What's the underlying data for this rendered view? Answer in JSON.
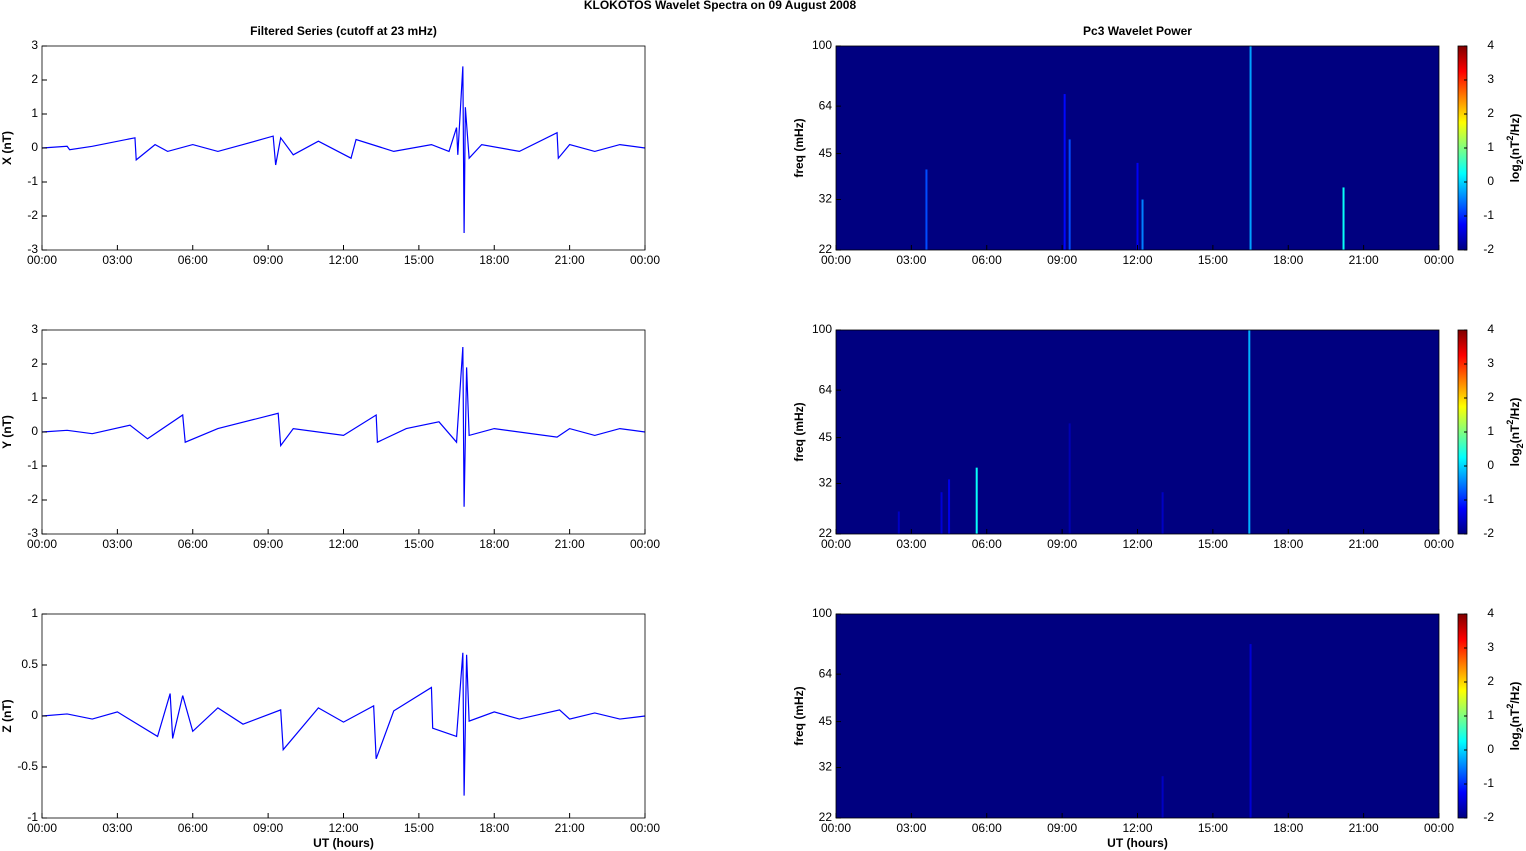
{
  "title": "KLOKOTOS Wavelet Spectra on 09 August    2008",
  "chart_data": [
    {
      "type": "line",
      "title": "Filtered Series (cutoff at 23 mHz)",
      "ylabel": "X (nT)",
      "color": "#0000ff",
      "x": [
        0,
        1,
        1.1,
        2,
        3.7,
        3.75,
        4.5,
        5,
        6,
        7,
        8,
        9.2,
        9.3,
        9.5,
        10,
        11,
        12.3,
        12.5,
        14,
        15.5,
        16.2,
        16.5,
        16.55,
        16.75,
        16.8,
        16.85,
        17,
        17.5,
        19,
        20.5,
        20.55,
        21,
        22,
        23,
        24
      ],
      "values": [
        0,
        0.05,
        -0.05,
        0.05,
        0.3,
        -0.35,
        0.1,
        -0.1,
        0.1,
        -0.1,
        0.1,
        0.35,
        -0.5,
        0.3,
        -0.2,
        0.2,
        -0.3,
        0.25,
        -0.1,
        0.1,
        -0.1,
        0.6,
        -0.2,
        2.4,
        -2.5,
        1.2,
        -0.3,
        0.1,
        -0.1,
        0.45,
        -0.3,
        0.1,
        -0.1,
        0.1,
        0
      ],
      "xlim": [
        0,
        24
      ],
      "xticks": [
        {
          "value": 0,
          "label": "00:00"
        },
        {
          "value": 3,
          "label": "03:00"
        },
        {
          "value": 6,
          "label": "06:00"
        },
        {
          "value": 9,
          "label": "09:00"
        },
        {
          "value": 12,
          "label": "12:00"
        },
        {
          "value": 15,
          "label": "15:00"
        },
        {
          "value": 18,
          "label": "18:00"
        },
        {
          "value": 21,
          "label": "21:00"
        },
        {
          "value": 24,
          "label": "00:00"
        }
      ],
      "ylim": [
        -3,
        3
      ],
      "yticks": [
        -3,
        -2,
        -1,
        0,
        1,
        2,
        3
      ]
    },
    {
      "type": "line",
      "ylabel": "Y (nT)",
      "color": "#0000ff",
      "x": [
        0,
        1,
        2,
        3.5,
        4.2,
        5.6,
        5.7,
        7,
        9.4,
        9.5,
        10,
        12,
        13.3,
        13.35,
        14.5,
        15.8,
        16.5,
        16.75,
        16.8,
        16.9,
        17,
        18,
        20.5,
        21,
        22,
        23,
        24
      ],
      "values": [
        0,
        0.05,
        -0.05,
        0.2,
        -0.2,
        0.5,
        -0.3,
        0.1,
        0.55,
        -0.4,
        0.1,
        -0.1,
        0.5,
        -0.3,
        0.1,
        0.3,
        -0.3,
        2.5,
        -2.2,
        1.9,
        -0.1,
        0.1,
        -0.15,
        0.1,
        -0.1,
        0.1,
        0
      ],
      "xlim": [
        0,
        24
      ],
      "xticks": [
        {
          "value": 0,
          "label": "00:00"
        },
        {
          "value": 3,
          "label": "03:00"
        },
        {
          "value": 6,
          "label": "06:00"
        },
        {
          "value": 9,
          "label": "09:00"
        },
        {
          "value": 12,
          "label": "12:00"
        },
        {
          "value": 15,
          "label": "15:00"
        },
        {
          "value": 18,
          "label": "18:00"
        },
        {
          "value": 21,
          "label": "21:00"
        },
        {
          "value": 24,
          "label": "00:00"
        }
      ],
      "ylim": [
        -3,
        3
      ],
      "yticks": [
        -3,
        -2,
        -1,
        0,
        1,
        2,
        3
      ]
    },
    {
      "type": "line",
      "ylabel": "Z (nT)",
      "xlabel": "UT (hours)",
      "color": "#0000ff",
      "x": [
        0,
        1,
        2,
        3,
        4.6,
        5.1,
        5.2,
        5.6,
        6,
        7,
        8,
        9.5,
        9.6,
        11,
        12,
        13.2,
        13.3,
        14,
        15.5,
        15.55,
        16.5,
        16.75,
        16.8,
        16.9,
        17,
        18,
        19,
        20.6,
        21,
        22,
        23,
        24
      ],
      "values": [
        0,
        0.02,
        -0.03,
        0.04,
        -0.2,
        0.22,
        -0.22,
        0.2,
        -0.15,
        0.08,
        -0.08,
        0.06,
        -0.33,
        0.08,
        -0.06,
        0.1,
        -0.42,
        0.05,
        0.28,
        -0.12,
        -0.2,
        0.62,
        -0.78,
        0.6,
        -0.05,
        0.04,
        -0.03,
        0.06,
        -0.03,
        0.03,
        -0.03,
        0
      ],
      "xlim": [
        0,
        24
      ],
      "xticks": [
        {
          "value": 0,
          "label": "00:00"
        },
        {
          "value": 3,
          "label": "03:00"
        },
        {
          "value": 6,
          "label": "06:00"
        },
        {
          "value": 9,
          "label": "09:00"
        },
        {
          "value": 12,
          "label": "12:00"
        },
        {
          "value": 15,
          "label": "15:00"
        },
        {
          "value": 18,
          "label": "18:00"
        },
        {
          "value": 21,
          "label": "21:00"
        },
        {
          "value": 24,
          "label": "00:00"
        }
      ],
      "ylim": [
        -1,
        1
      ],
      "yticks": [
        -1,
        -0.5,
        0,
        0.5,
        1
      ]
    },
    {
      "type": "spectrogram",
      "title": "Pc3 Wavelet Power",
      "ylabel": "freq (mHz)",
      "log_y": true,
      "x": [
        3.6,
        9.1,
        9.3,
        12.0,
        12.2,
        16.5,
        20.2
      ],
      "top": [
        40,
        70,
        50,
        42,
        32,
        100,
        35
      ],
      "values": [
        -0.8,
        -1.2,
        -0.8,
        -1.3,
        -0.5,
        -0.3,
        0.3
      ],
      "xlim": [
        0,
        24
      ],
      "xticks": [
        {
          "value": 0,
          "label": "00:00"
        },
        {
          "value": 3,
          "label": "03:00"
        },
        {
          "value": 6,
          "label": "06:00"
        },
        {
          "value": 9,
          "label": "09:00"
        },
        {
          "value": 12,
          "label": "12:00"
        },
        {
          "value": 15,
          "label": "15:00"
        },
        {
          "value": 18,
          "label": "18:00"
        },
        {
          "value": 21,
          "label": "21:00"
        },
        {
          "value": 24,
          "label": "00:00"
        }
      ],
      "ylim": [
        22,
        100
      ],
      "yticks": [
        22,
        32,
        45,
        64,
        100
      ],
      "clim": [
        -2,
        4
      ],
      "cticks": [
        -2,
        -1,
        0,
        1,
        2,
        3,
        4
      ],
      "colorbar_label": [
        "log",
        "2",
        "(nT",
        "2",
        "/Hz)"
      ]
    },
    {
      "type": "spectrogram",
      "ylabel": "freq (mHz)",
      "log_y": true,
      "x": [
        2.5,
        4.2,
        4.5,
        5.6,
        9.3,
        13.0,
        16.45
      ],
      "top": [
        26,
        30,
        33,
        36,
        50,
        30,
        100
      ],
      "values": [
        -1.6,
        -1.5,
        -1.4,
        0.3,
        -1.7,
        -1.6,
        -0.2
      ],
      "xlim": [
        0,
        24
      ],
      "xticks": [
        {
          "value": 0,
          "label": "00:00"
        },
        {
          "value": 3,
          "label": "03:00"
        },
        {
          "value": 6,
          "label": "06:00"
        },
        {
          "value": 9,
          "label": "09:00"
        },
        {
          "value": 12,
          "label": "12:00"
        },
        {
          "value": 15,
          "label": "15:00"
        },
        {
          "value": 18,
          "label": "18:00"
        },
        {
          "value": 21,
          "label": "21:00"
        },
        {
          "value": 24,
          "label": "00:00"
        }
      ],
      "ylim": [
        22,
        100
      ],
      "yticks": [
        22,
        32,
        45,
        64,
        100
      ],
      "clim": [
        -2,
        4
      ],
      "cticks": [
        -2,
        -1,
        0,
        1,
        2,
        3,
        4
      ],
      "colorbar_label": [
        "log",
        "2",
        "(nT",
        "2",
        "/Hz)"
      ]
    },
    {
      "type": "spectrogram",
      "ylabel": "freq (mHz)",
      "xlabel": "UT (hours)",
      "log_y": true,
      "x": [
        13.0,
        16.5
      ],
      "top": [
        30,
        80
      ],
      "values": [
        -1.6,
        -1.5
      ],
      "xlim": [
        0,
        24
      ],
      "xticks": [
        {
          "value": 0,
          "label": "00:00"
        },
        {
          "value": 3,
          "label": "03:00"
        },
        {
          "value": 6,
          "label": "06:00"
        },
        {
          "value": 9,
          "label": "09:00"
        },
        {
          "value": 12,
          "label": "12:00"
        },
        {
          "value": 15,
          "label": "15:00"
        },
        {
          "value": 18,
          "label": "18:00"
        },
        {
          "value": 21,
          "label": "21:00"
        },
        {
          "value": 24,
          "label": "00:00"
        }
      ],
      "ylim": [
        22,
        100
      ],
      "yticks": [
        22,
        32,
        45,
        64,
        100
      ],
      "clim": [
        -2,
        4
      ],
      "cticks": [
        -2,
        -1,
        0,
        1,
        2,
        3,
        4
      ],
      "colorbar_label": [
        "log",
        "2",
        "(nT",
        "2",
        "/Hz)"
      ]
    }
  ]
}
